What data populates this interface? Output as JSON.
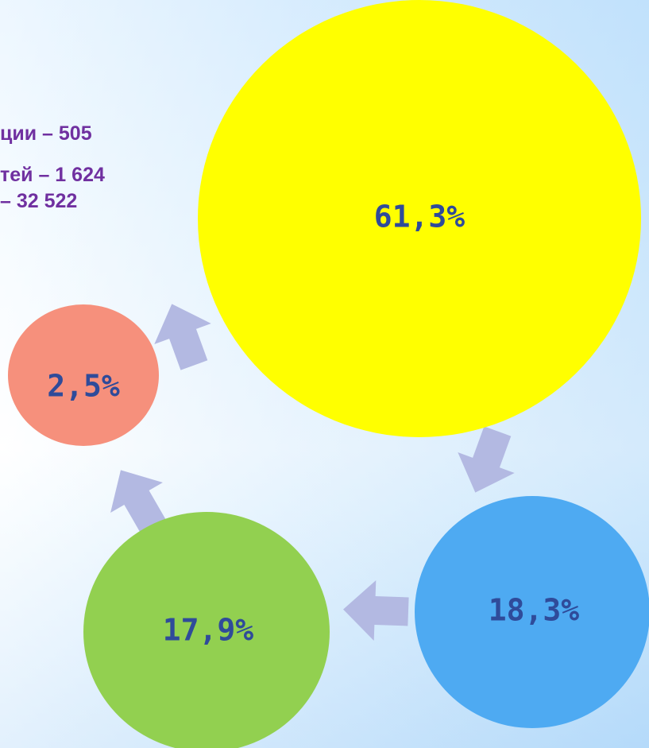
{
  "text_lines": [
    "ции – 505",
    "тей – 1 624",
    "– 32 522"
  ],
  "nodes": [
    {
      "label": "61,3%"
    },
    {
      "label": "18,3%"
    },
    {
      "label": "17,9%"
    },
    {
      "label": "2,5%"
    }
  ]
}
